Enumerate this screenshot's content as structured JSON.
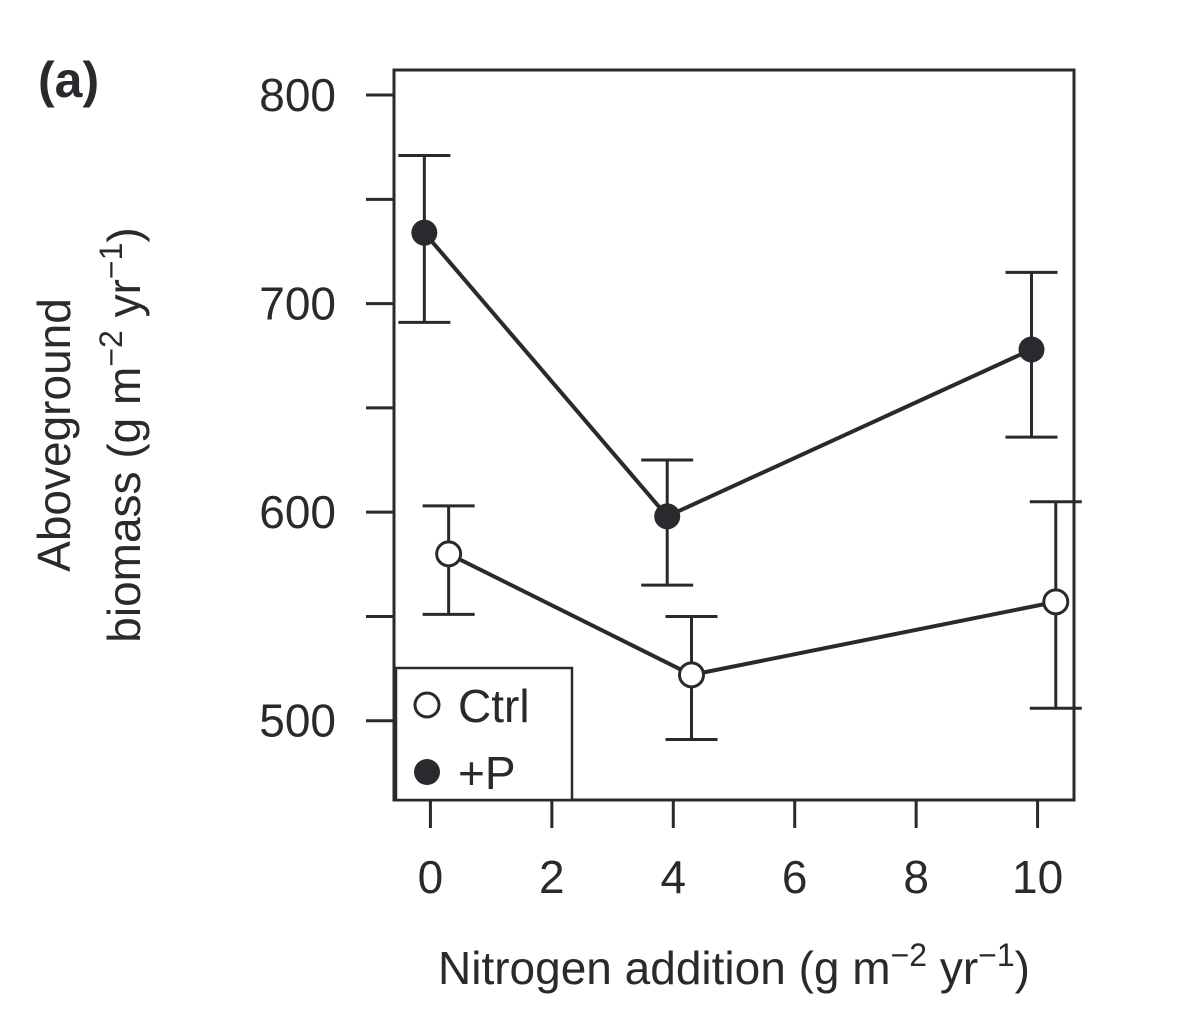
{
  "panel_label": "(a)",
  "chart_data": {
    "type": "line",
    "xlabel": "Nitrogen addition (g m",
    "xlabel_sup1": "−2",
    "xlabel_mid": " yr",
    "xlabel_sup2": "−1",
    "xlabel_end": ")",
    "ylabel_line1": "Aboveground",
    "ylabel_line2": "biomass (g m",
    "ylabel_sup1": "−2",
    "ylabel_mid": " yr",
    "ylabel_sup2": "−1",
    "ylabel_end": ")",
    "xlim": [
      -0.6,
      10.6
    ],
    "ylim": [
      462,
      812
    ],
    "x_ticks": [
      0,
      2,
      4,
      6,
      8,
      10
    ],
    "x_tick_labels": [
      "0",
      "2",
      "4",
      "6",
      "8",
      "10"
    ],
    "y_ticks": [
      500,
      550,
      600,
      650,
      700,
      750,
      800
    ],
    "y_tick_labels": [
      "500",
      "",
      "600",
      "",
      "700",
      "",
      "800"
    ],
    "grid": false,
    "legend_position": "bottom-left",
    "series": [
      {
        "name": "Ctrl",
        "marker": "open-circle",
        "x": [
          0.3,
          4.3,
          10.3
        ],
        "y": [
          580,
          522,
          557
        ],
        "err_low": [
          551,
          491,
          506
        ],
        "err_high": [
          603,
          550,
          605
        ]
      },
      {
        "name": "+P",
        "marker": "filled-circle",
        "x": [
          -0.1,
          3.9,
          9.9
        ],
        "y": [
          734,
          598,
          678
        ],
        "err_low": [
          691,
          565,
          636
        ],
        "err_high": [
          771,
          625,
          715
        ]
      }
    ],
    "colors": {
      "ink": "#2a2a2e",
      "background": "#ffffff"
    }
  }
}
